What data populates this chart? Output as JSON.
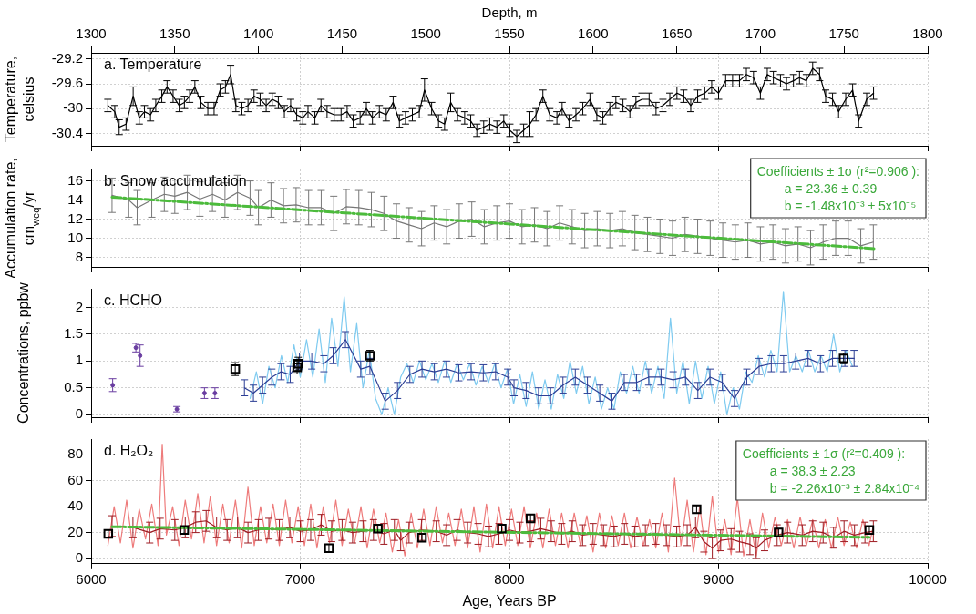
{
  "chart_data": [
    {
      "type": "line",
      "title": "a. Temperature",
      "ylabel": "Temperature, celsius",
      "xlim": [
        6000,
        10000
      ],
      "xticks": [
        6000,
        7000,
        8000,
        9000,
        10000
      ],
      "ylim": [
        -30.6,
        -29.1
      ],
      "yticks": [
        -29.2,
        -29.6,
        -30,
        -30.4
      ],
      "x2lim": [
        1300,
        1800
      ],
      "x2ticks": [
        1300,
        1350,
        1400,
        1450,
        1500,
        1550,
        1600,
        1650,
        1700,
        1750,
        1800
      ],
      "x2label": "Depth, m",
      "grid": true,
      "tick_labels": "y",
      "marker": "none",
      "line_style": "solid",
      "series": [
        {
          "color": "#000000",
          "x": [
            6080,
            6113,
            6134,
            6167,
            6201,
            6230,
            6255,
            6284,
            6309,
            6338,
            6363,
            6392,
            6421,
            6446,
            6471,
            6496,
            6525,
            6558,
            6588,
            6617,
            6642,
            6667,
            6692,
            6721,
            6750,
            6779,
            6808,
            6837,
            6866,
            6895,
            6924,
            6954,
            6983,
            7012,
            7037,
            7070,
            7099,
            7128,
            7162,
            7195,
            7224,
            7253,
            7286,
            7316,
            7345,
            7378,
            7411,
            7444,
            7474,
            7503,
            7536,
            7569,
            7594,
            7628,
            7661,
            7690,
            7719,
            7752,
            7786,
            7815,
            7844,
            7877,
            7906,
            7940,
            7973,
            8002,
            8035,
            8068,
            8098,
            8127,
            8160,
            8193,
            8227,
            8252,
            8285,
            8318,
            8351,
            8385,
            8418,
            8447,
            8480,
            8509,
            8543,
            8576,
            8605,
            8634,
            8668,
            8701,
            8734,
            8767,
            8801,
            8834,
            8867,
            8900,
            8934,
            8967,
            9000,
            9034,
            9067,
            9100,
            9133,
            9167,
            9200,
            9233,
            9262,
            9296,
            9325,
            9358,
            9387,
            9420,
            9450,
            9483,
            9512,
            9545,
            9574,
            9608,
            9641,
            9670,
            9708,
            9741
          ],
          "values": [
            -29.95,
            -30.05,
            -30.3,
            -30.25,
            -29.8,
            -30.15,
            -30.05,
            -30.1,
            -29.95,
            -29.8,
            -29.65,
            -29.8,
            -29.95,
            -29.9,
            -29.8,
            -29.65,
            -29.9,
            -30.0,
            -30.0,
            -29.7,
            -29.65,
            -29.45,
            -29.95,
            -30.0,
            -29.95,
            -29.8,
            -29.85,
            -29.95,
            -29.85,
            -29.9,
            -30.05,
            -29.95,
            -30.1,
            -30.15,
            -30.05,
            -30.15,
            -29.95,
            -30.05,
            -30.1,
            -30.1,
            -30.05,
            -30.2,
            -30.15,
            -30.0,
            -30.15,
            -30.05,
            -30.1,
            -29.9,
            -30.2,
            -30.15,
            -30.1,
            -30.05,
            -29.7,
            -30.0,
            -30.2,
            -30.25,
            -29.9,
            -30.1,
            -30.15,
            -30.2,
            -30.35,
            -30.3,
            -30.25,
            -30.3,
            -30.2,
            -30.35,
            -30.45,
            -30.35,
            -30.25,
            -30.1,
            -29.8,
            -30.1,
            -30.15,
            -30.0,
            -30.2,
            -30.1,
            -30.0,
            -29.85,
            -30.1,
            -30.15,
            -30.0,
            -29.9,
            -29.95,
            -30.05,
            -29.9,
            -29.85,
            -29.85,
            -30.0,
            -29.95,
            -29.85,
            -29.75,
            -29.8,
            -29.95,
            -29.8,
            -29.75,
            -29.65,
            -29.75,
            -29.55,
            -29.55,
            -29.55,
            -29.45,
            -29.5,
            -29.75,
            -29.45,
            -29.5,
            -29.55,
            -29.6,
            -29.55,
            -29.5,
            -29.55,
            -29.35,
            -29.45,
            -29.8,
            -29.85,
            -30.05,
            -29.85,
            -29.7,
            -30.2,
            -29.85,
            -29.75
          ],
          "errors": [
            0.1,
            0.1,
            0.12,
            0.1,
            0.15,
            0.1,
            0.1,
            0.1,
            0.1,
            0.1,
            0.1,
            0.1,
            0.1,
            0.1,
            0.1,
            0.1,
            0.1,
            0.1,
            0.1,
            0.1,
            0.1,
            0.15,
            0.1,
            0.1,
            0.1,
            0.1,
            0.1,
            0.1,
            0.1,
            0.1,
            0.1,
            0.1,
            0.1,
            0.1,
            0.1,
            0.1,
            0.1,
            0.1,
            0.1,
            0.1,
            0.1,
            0.1,
            0.1,
            0.1,
            0.1,
            0.1,
            0.1,
            0.1,
            0.1,
            0.1,
            0.1,
            0.1,
            0.18,
            0.1,
            0.1,
            0.1,
            0.15,
            0.1,
            0.1,
            0.1,
            0.1,
            0.1,
            0.1,
            0.1,
            0.1,
            0.1,
            0.1,
            0.1,
            0.2,
            0.1,
            0.1,
            0.1,
            0.1,
            0.1,
            0.1,
            0.1,
            0.1,
            0.1,
            0.1,
            0.1,
            0.1,
            0.1,
            0.1,
            0.1,
            0.1,
            0.1,
            0.1,
            0.1,
            0.1,
            0.1,
            0.1,
            0.1,
            0.1,
            0.1,
            0.1,
            0.1,
            0.1,
            0.1,
            0.1,
            0.1,
            0.1,
            0.1,
            0.1,
            0.1,
            0.1,
            0.1,
            0.1,
            0.1,
            0.1,
            0.1,
            0.1,
            0.1,
            0.1,
            0.1,
            0.1,
            0.1,
            0.1,
            0.1,
            0.1,
            0.1
          ]
        }
      ]
    },
    {
      "type": "line",
      "title": "b. Snow accumulation",
      "ylabel": "Accumulation rate, cm$_{weq}$/yr",
      "xlim": [
        6000,
        10000
      ],
      "xticks": [
        6000,
        7000,
        8000,
        9000,
        10000
      ],
      "ylim": [
        7,
        17.2
      ],
      "yticks": [
        8,
        10,
        12,
        14,
        16
      ],
      "grid": true,
      "tick_labels": "y",
      "marker": "none",
      "line_style": "solid",
      "annotations": [
        "Coefficients ± 1σ (r²=0.906 ):",
        "a = 23.36 ± 0.39",
        "b = -1.48x10⁻³ ± 5x10⁻⁵"
      ],
      "series": [
        {
          "color": "#777777",
          "x": [
            6100,
            6180,
            6220,
            6290,
            6350,
            6400,
            6460,
            6520,
            6580,
            6640,
            6700,
            6760,
            6800,
            6860,
            6920,
            6980,
            7040,
            7100,
            7160,
            7220,
            7280,
            7340,
            7400,
            7460,
            7520,
            7580,
            7640,
            7700,
            7760,
            7820,
            7880,
            7940,
            8000,
            8060,
            8120,
            8180,
            8240,
            8300,
            8360,
            8420,
            8480,
            8540,
            8600,
            8660,
            8720,
            8780,
            8840,
            8900,
            8960,
            9020,
            9080,
            9140,
            9200,
            9260,
            9320,
            9380,
            9440,
            9500,
            9560,
            9620,
            9680,
            9740
          ],
          "values": [
            14.5,
            14.0,
            13.2,
            14.0,
            14.6,
            14.4,
            14.8,
            14.1,
            14.6,
            14.0,
            14.8,
            14.2,
            13.2,
            14.0,
            13.4,
            13.5,
            13.2,
            13.2,
            12.6,
            13.3,
            13.2,
            13.0,
            12.6,
            11.8,
            11.4,
            11.0,
            11.6,
            11.2,
            11.8,
            12.0,
            11.2,
            11.6,
            11.8,
            11.2,
            11.4,
            11.0,
            11.6,
            11.2,
            10.8,
            11.0,
            10.8,
            11.0,
            10.6,
            10.4,
            10.2,
            10.0,
            10.4,
            10.2,
            10.0,
            9.8,
            9.6,
            9.8,
            9.4,
            9.6,
            9.2,
            9.4,
            9.0,
            9.6,
            10.0,
            10.0,
            9.2,
            9.6
          ],
          "errors": [
            1.8,
            1.8,
            1.8,
            1.8,
            1.8,
            1.8,
            1.8,
            1.8,
            1.8,
            1.8,
            1.8,
            1.8,
            1.8,
            1.8,
            1.8,
            1.8,
            1.8,
            1.8,
            1.8,
            1.8,
            1.8,
            1.8,
            1.8,
            1.8,
            1.8,
            1.8,
            1.8,
            1.8,
            1.8,
            1.8,
            1.8,
            1.8,
            1.8,
            1.8,
            1.8,
            1.8,
            1.8,
            1.8,
            1.8,
            1.8,
            1.8,
            1.8,
            1.8,
            1.8,
            1.8,
            1.8,
            1.8,
            1.8,
            1.8,
            1.8,
            1.8,
            1.8,
            1.8,
            1.8,
            1.8,
            1.8,
            1.8,
            1.8,
            1.8,
            1.8,
            1.8,
            1.8
          ]
        },
        {
          "type": "line",
          "color": "#4cbb3c",
          "line_style": "dashed",
          "x": [
            6100,
            9750
          ],
          "values": [
            14.3,
            8.9
          ]
        }
      ]
    },
    {
      "type": "line",
      "title": "c. HCHO",
      "ylabel": "Concentrations, ppbw",
      "xlim": [
        6000,
        10000
      ],
      "xticks": [
        6000,
        7000,
        8000,
        9000,
        10000
      ],
      "ylim": [
        -0.05,
        2.35
      ],
      "yticks": [
        0,
        0.5,
        1,
        1.5,
        2
      ],
      "grid": true,
      "tick_labels": "y",
      "marker": "none",
      "line_style": "solid",
      "series": [
        {
          "color": "#7fcbf0",
          "x": [
            6760,
            6790,
            6820,
            6850,
            6880,
            6910,
            6940,
            6970,
            7000,
            7030,
            7060,
            7090,
            7120,
            7150,
            7180,
            7210,
            7240,
            7270,
            7300,
            7330,
            7360,
            7390,
            7420,
            7450,
            7480,
            7510,
            7540,
            7570,
            7600,
            7630,
            7660,
            7690,
            7720,
            7750,
            7780,
            7810,
            7840,
            7870,
            7900,
            7930,
            7960,
            7990,
            8020,
            8050,
            8080,
            8110,
            8140,
            8170,
            8200,
            8230,
            8260,
            8290,
            8320,
            8350,
            8380,
            8410,
            8440,
            8470,
            8500,
            8530,
            8560,
            8590,
            8620,
            8650,
            8680,
            8710,
            8740,
            8770,
            8800,
            8830,
            8860,
            8890,
            8920,
            8950,
            8980,
            9010,
            9040,
            9070,
            9100,
            9130,
            9160,
            9190,
            9220,
            9250,
            9280,
            9310,
            9340,
            9370,
            9400,
            9430,
            9460,
            9490,
            9520,
            9550,
            9580,
            9610,
            9640
          ],
          "values": [
            0.3,
            0.8,
            0.2,
            0.9,
            0.5,
            1.1,
            0.6,
            1.3,
            0.7,
            1.4,
            0.7,
            1.6,
            0.6,
            1.8,
            0.9,
            2.2,
            0.8,
            1.7,
            0.5,
            1.2,
            0.3,
            0.0,
            0.5,
            0.0,
            0.7,
            0.95,
            0.6,
            1.0,
            0.65,
            0.95,
            0.6,
            1.0,
            0.6,
            0.95,
            0.65,
            0.95,
            0.55,
            0.9,
            0.6,
            0.95,
            0.5,
            0.85,
            0.2,
            0.75,
            0.15,
            0.8,
            0.1,
            0.65,
            0.1,
            0.75,
            0.3,
            1.0,
            0.4,
            0.9,
            0.2,
            0.7,
            0.1,
            0.5,
            0.1,
            0.8,
            0.4,
            0.9,
            0.4,
            1.0,
            0.4,
            0.9,
            0.3,
            1.8,
            0.4,
            1.0,
            0.2,
            1.0,
            0.3,
            0.9,
            0.2,
            0.8,
            0.0,
            0.5,
            0.1,
            0.8,
            0.6,
            1.1,
            0.7,
            1.2,
            0.8,
            2.3,
            0.8,
            1.1,
            0.8,
            1.2,
            0.8,
            1.1,
            0.8,
            1.5,
            0.8,
            1.2,
            0.9
          ]
        },
        {
          "type": "scatter",
          "color": "#6a3ea1",
          "marker": "circle",
          "x": [
            6103,
            6214,
            6234,
            6410,
            6542,
            6592
          ],
          "values": [
            0.55,
            1.25,
            1.1,
            0.1,
            0.4,
            0.4
          ],
          "errors": [
            0.12,
            0.08,
            0.2,
            0.05,
            0.1,
            0.1
          ]
        },
        {
          "color": "#2c3e95",
          "x": [
            6733,
            6776,
            6820,
            6864,
            6908,
            6952,
            6996,
            7055,
            7113,
            7157,
            7216,
            7289,
            7333,
            7406,
            7465,
            7524,
            7582,
            7641,
            7699,
            7758,
            7817,
            7875,
            7934,
            7992,
            8022,
            8080,
            8139,
            8197,
            8256,
            8315,
            8373,
            8432,
            8490,
            8549,
            8608,
            8666,
            8725,
            8783,
            8842,
            8901,
            8959,
            9018,
            9076,
            9135,
            9194,
            9252,
            9311,
            9369,
            9428,
            9487,
            9545,
            9604,
            9648
          ],
          "values": [
            0.5,
            0.4,
            0.55,
            0.7,
            0.8,
            0.75,
            1.0,
            1.0,
            0.95,
            1.1,
            1.4,
            0.85,
            0.9,
            0.25,
            0.45,
            0.75,
            0.85,
            0.8,
            0.85,
            0.78,
            0.8,
            0.78,
            0.8,
            0.7,
            0.5,
            0.45,
            0.35,
            0.35,
            0.55,
            0.7,
            0.55,
            0.4,
            0.25,
            0.6,
            0.6,
            0.7,
            0.7,
            0.65,
            0.7,
            0.45,
            0.7,
            0.6,
            0.3,
            0.7,
            0.9,
            0.95,
            0.95,
            1.0,
            1.05,
            0.95,
            1.05,
            1.05,
            1.05
          ],
          "errors": [
            0.15,
            0.15,
            0.15,
            0.15,
            0.15,
            0.15,
            0.15,
            0.15,
            0.15,
            0.15,
            0.15,
            0.15,
            0.15,
            0.15,
            0.15,
            0.15,
            0.15,
            0.15,
            0.15,
            0.15,
            0.15,
            0.15,
            0.15,
            0.15,
            0.15,
            0.15,
            0.15,
            0.15,
            0.15,
            0.15,
            0.15,
            0.15,
            0.15,
            0.15,
            0.15,
            0.15,
            0.15,
            0.15,
            0.15,
            0.15,
            0.15,
            0.15,
            0.15,
            0.15,
            0.15,
            0.15,
            0.15,
            0.15,
            0.15,
            0.15,
            0.15,
            0.15,
            0.15
          ]
        },
        {
          "type": "scatter",
          "color": "#000000",
          "marker": "square",
          "x": [
            6689,
            6985,
            6990,
            7333,
            9598
          ],
          "values": [
            0.85,
            0.88,
            0.95,
            1.1,
            1.05
          ],
          "errors": [
            0.12,
            0.12,
            0.12,
            0.1,
            0.1
          ]
        }
      ]
    },
    {
      "type": "line",
      "title": "d. H₂O₂",
      "xlabel": "Age, Years BP",
      "xlim": [
        6000,
        10000
      ],
      "xticks": [
        6000,
        7000,
        8000,
        9000,
        10000
      ],
      "ylim": [
        -4,
        92
      ],
      "yticks": [
        0,
        20,
        40,
        60,
        80
      ],
      "grid": true,
      "marker": "none",
      "line_style": "solid",
      "annotations": [
        "Coefficients ± 1σ (r²=0.409 ):",
        "a = 38.3 ± 2.23",
        "b = -2.26x10⁻³ ± 2.84x10⁻⁴"
      ],
      "series": [
        {
          "color": "#ee7b7b",
          "x": [
            6080,
            6110,
            6140,
            6170,
            6200,
            6230,
            6260,
            6290,
            6320,
            6340,
            6360,
            6390,
            6420,
            6450,
            6480,
            6510,
            6540,
            6570,
            6600,
            6630,
            6660,
            6690,
            6720,
            6750,
            6780,
            6810,
            6840,
            6870,
            6900,
            6930,
            6960,
            6990,
            7020,
            7050,
            7080,
            7110,
            7140,
            7170,
            7200,
            7230,
            7260,
            7290,
            7320,
            7350,
            7380,
            7410,
            7440,
            7470,
            7500,
            7530,
            7560,
            7590,
            7620,
            7650,
            7680,
            7710,
            7740,
            7770,
            7800,
            7830,
            7860,
            7890,
            7920,
            7950,
            7980,
            8010,
            8040,
            8070,
            8100,
            8130,
            8160,
            8190,
            8220,
            8250,
            8280,
            8310,
            8340,
            8370,
            8400,
            8430,
            8460,
            8490,
            8520,
            8550,
            8580,
            8610,
            8640,
            8670,
            8700,
            8730,
            8760,
            8790,
            8820,
            8850,
            8880,
            8910,
            8940,
            8970,
            9000,
            9030,
            9060,
            9090,
            9120,
            9150,
            9180,
            9210,
            9240,
            9270,
            9300,
            9330,
            9360,
            9390,
            9420,
            9450,
            9480,
            9510,
            9540,
            9570,
            9600,
            9630,
            9660,
            9690,
            9720,
            9740
          ],
          "values": [
            10,
            40,
            12,
            45,
            8,
            38,
            15,
            42,
            10,
            88,
            18,
            40,
            10,
            45,
            15,
            50,
            12,
            48,
            10,
            42,
            12,
            45,
            8,
            55,
            10,
            40,
            12,
            42,
            10,
            45,
            12,
            40,
            10,
            42,
            8,
            40,
            12,
            45,
            10,
            38,
            12,
            40,
            8,
            38,
            12,
            35,
            5,
            30,
            2,
            35,
            8,
            38,
            10,
            40,
            12,
            35,
            10,
            38,
            8,
            40,
            5,
            42,
            8,
            40,
            10,
            38,
            10,
            40,
            8,
            35,
            8,
            38,
            10,
            35,
            8,
            35,
            10,
            33,
            5,
            35,
            8,
            33,
            10,
            35,
            8,
            32,
            10,
            30,
            8,
            35,
            5,
            62,
            10,
            45,
            5,
            40,
            3,
            48,
            5,
            30,
            3,
            47,
            2,
            30,
            2,
            35,
            8,
            32,
            10,
            30,
            8,
            32,
            10,
            30,
            8,
            30,
            8,
            32,
            10,
            28,
            8,
            30,
            10,
            25
          ]
        },
        {
          "color": "#9e1b22",
          "x": [
            6100,
            6200,
            6280,
            6330,
            6400,
            6450,
            6500,
            6550,
            6600,
            6650,
            6700,
            6750,
            6800,
            6850,
            6900,
            6950,
            7000,
            7050,
            7100,
            7150,
            7200,
            7250,
            7300,
            7350,
            7400,
            7450,
            7480,
            7520,
            7580,
            7650,
            7700,
            7750,
            7800,
            7850,
            7900,
            7950,
            8000,
            8050,
            8100,
            8150,
            8200,
            8250,
            8300,
            8350,
            8400,
            8450,
            8500,
            8550,
            8600,
            8650,
            8700,
            8750,
            8800,
            8850,
            8890,
            8930,
            8970,
            9010,
            9060,
            9100,
            9150,
            9180,
            9220,
            9280,
            9330,
            9400,
            9450,
            9500,
            9550,
            9600,
            9650,
            9700,
            9740
          ],
          "values": [
            25,
            24,
            20,
            23,
            22,
            24,
            28,
            29,
            24,
            22,
            24,
            20,
            22,
            23,
            22,
            24,
            21,
            22,
            26,
            21,
            22,
            20,
            21,
            22,
            19,
            22,
            14,
            20,
            22,
            21,
            18,
            22,
            20,
            19,
            17,
            19,
            22,
            20,
            21,
            23,
            21,
            19,
            21,
            18,
            19,
            18,
            17,
            19,
            17,
            18,
            19,
            18,
            17,
            18,
            24,
            13,
            8,
            14,
            15,
            13,
            11,
            8,
            14,
            18,
            20,
            18,
            21,
            20,
            16,
            21,
            18,
            20,
            21
          ],
          "errors": [
            8,
            8,
            8,
            8,
            8,
            8,
            8,
            8,
            8,
            8,
            8,
            8,
            8,
            8,
            8,
            8,
            8,
            8,
            8,
            8,
            8,
            8,
            8,
            8,
            8,
            8,
            8,
            8,
            8,
            8,
            8,
            8,
            8,
            8,
            8,
            8,
            8,
            8,
            8,
            8,
            8,
            8,
            8,
            8,
            8,
            8,
            8,
            8,
            8,
            8,
            8,
            8,
            8,
            8,
            8,
            8,
            8,
            8,
            8,
            8,
            8,
            8,
            8,
            8,
            8,
            8,
            8,
            8,
            8,
            8,
            8,
            8,
            8
          ]
        },
        {
          "color": "#4cbb3c",
          "line_style": "dashed",
          "x": [
            6100,
            9720
          ],
          "values": [
            24.5,
            16.3
          ]
        },
        {
          "type": "scatter",
          "color": "#000000",
          "marker": "square",
          "x": [
            6082,
            6445,
            7137,
            7371,
            7582,
            7963,
            8101,
            8895,
            9287,
            9721
          ],
          "values": [
            19,
            22,
            8,
            23,
            16,
            23,
            31,
            38,
            20,
            22
          ],
          "errors": [
            3,
            3,
            3,
            3,
            3,
            3,
            3,
            3,
            3,
            3
          ]
        }
      ]
    }
  ]
}
